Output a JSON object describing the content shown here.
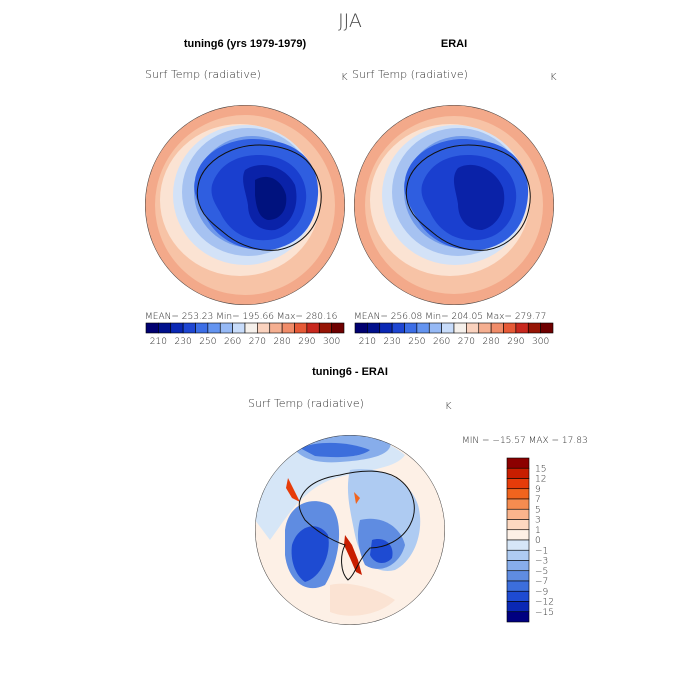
{
  "page_title": "JJA",
  "chart_data": [
    {
      "type": "heatmap",
      "title": "tuning6 (yrs 1979-1979)",
      "variable": "Surf Temp (radiative)",
      "units": "K",
      "projection": "south polar stereographic",
      "stats": {
        "mean": 253.23,
        "min": 195.66,
        "max": 280.16
      },
      "stats_text": "MEAN= 253.23   Min= 195.66   Max= 280.16",
      "colorbar_levels": [
        210,
        230,
        250,
        260,
        270,
        280,
        290,
        300
      ]
    },
    {
      "type": "heatmap",
      "title": "ERAI",
      "variable": "Surf Temp (radiative)",
      "units": "K",
      "projection": "south polar stereographic",
      "stats": {
        "mean": 256.08,
        "min": 204.05,
        "max": 279.77
      },
      "stats_text": "MEAN= 256.08   Min= 204.05   Max= 279.77",
      "colorbar_levels": [
        210,
        230,
        250,
        260,
        270,
        280,
        290,
        300
      ]
    },
    {
      "type": "heatmap",
      "title": "tuning6 - ERAI",
      "variable": "Surf Temp (radiative)",
      "units": "K",
      "projection": "south polar stereographic",
      "stats": {
        "min": -15.57,
        "max": 17.83
      },
      "stats_text": "MIN = −15.57  MAX =  17.83",
      "colorbar_levels": [
        15,
        12,
        9,
        7,
        5,
        3,
        1,
        0,
        -1,
        -3,
        -5,
        -7,
        -9,
        -12,
        -15
      ],
      "colorbar_labels": [
        "15",
        "12",
        "9",
        "7",
        "5",
        "3",
        "1",
        "0",
        "−1",
        "−3",
        "−5",
        "−7",
        "−9",
        "−12",
        "−15"
      ]
    }
  ],
  "colors": {
    "abs_scale": [
      "#000070",
      "#00108c",
      "#0a28b4",
      "#1e46d2",
      "#3c6ee6",
      "#6494f0",
      "#96b9f5",
      "#c8dcfa",
      "#f5f0eb",
      "#fad2be",
      "#f5af91",
      "#f08c69",
      "#e65a37",
      "#c8281e",
      "#961405",
      "#6e0000"
    ],
    "diff_scale": [
      "#8c0000",
      "#c81e00",
      "#e63c0a",
      "#f0641e",
      "#f58c50",
      "#fab48c",
      "#fdd8c0",
      "#fdf0e6",
      "#d6e6f7",
      "#aecbf2",
      "#87adeb",
      "#5f8ce1",
      "#3c6edc",
      "#1e4bd2",
      "#0a28b4",
      "#000080"
    ]
  }
}
